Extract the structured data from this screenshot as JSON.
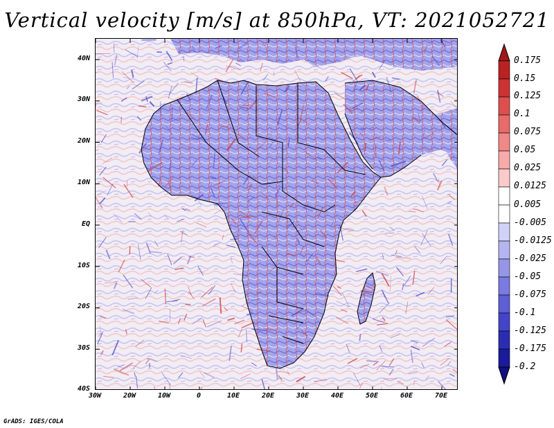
{
  "title": "Vertical velocity [m/s] at 850hPa, VT: 2021052721",
  "credit": "GrADS: IGES/COLA",
  "lat_labels": [
    "40N",
    "30N",
    "20N",
    "10N",
    "EQ",
    "10S",
    "20S",
    "30S",
    "40S"
  ],
  "lon_labels": [
    "30W",
    "20W",
    "10W",
    "0",
    "10E",
    "20E",
    "30E",
    "40E",
    "50E",
    "60E",
    "70E"
  ],
  "colorbar": {
    "labels": [
      "0.175",
      "0.15",
      "0.125",
      "0.1",
      "0.075",
      "0.05",
      "0.025",
      "0.0125",
      "0.005",
      "-0.005",
      "-0.0125",
      "-0.025",
      "-0.05",
      "-0.075",
      "-0.1",
      "-0.125",
      "-0.175",
      "-0.2"
    ],
    "colors": [
      "#a01818",
      "#b82222",
      "#cc3333",
      "#dd4f4f",
      "#e86a6a",
      "#f08888",
      "#f6aaaa",
      "#fbcaca",
      "#ffffff",
      "#ffffff",
      "#d2d2f8",
      "#b4b4f0",
      "#9696e8",
      "#7a7ae0",
      "#5e5ed6",
      "#4444c8",
      "#2c2cb2",
      "#1a1a9a",
      "#0f0f80"
    ]
  },
  "colors": {
    "land_base": "#a4a4ec",
    "ocean_base": "#f2ecf4",
    "updraft": "#d03a3a",
    "downdraft": "#4a4ad0",
    "boundaries": "#000000"
  }
}
